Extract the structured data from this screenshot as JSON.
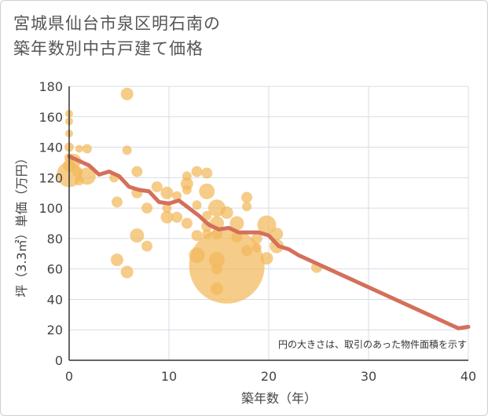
{
  "chart_data": {
    "type": "scatter",
    "title_line1": "宮城県仙台市泉区明石南の",
    "title_line2": "築年数別中古戸建て価格",
    "xlabel": "築年数（年）",
    "ylabel": "坪（3.3㎡）単価（万円）",
    "note": "円の大きさは、取引のあった物件面積を示す",
    "xlim": [
      0,
      40
    ],
    "ylim": [
      0,
      180
    ],
    "xticks": [
      0,
      10,
      20,
      30,
      40
    ],
    "yticks": [
      0,
      20,
      40,
      60,
      80,
      100,
      120,
      140,
      160,
      180
    ],
    "colors": {
      "bubble": "#f2b85c",
      "line": "#d4705a",
      "grid": "#d6dde6",
      "axis": "#333333"
    },
    "bubbles": [
      {
        "x": 0,
        "y": 162,
        "s": 5
      },
      {
        "x": 0,
        "y": 157,
        "s": 5
      },
      {
        "x": 0,
        "y": 149,
        "s": 5
      },
      {
        "x": 0,
        "y": 140,
        "s": 6
      },
      {
        "x": 0,
        "y": 133,
        "s": 6
      },
      {
        "x": 0,
        "y": 128,
        "s": 8
      },
      {
        "x": 0,
        "y": 122,
        "s": 16
      },
      {
        "x": 0.5,
        "y": 131,
        "s": 9
      },
      {
        "x": 0.8,
        "y": 124,
        "s": 7
      },
      {
        "x": 1,
        "y": 139,
        "s": 5
      },
      {
        "x": 1,
        "y": 118,
        "s": 6
      },
      {
        "x": 1.8,
        "y": 121,
        "s": 11
      },
      {
        "x": 1.8,
        "y": 139,
        "s": 6
      },
      {
        "x": 4.5,
        "y": 120,
        "s": 6
      },
      {
        "x": 4.8,
        "y": 104,
        "s": 7
      },
      {
        "x": 4.8,
        "y": 66,
        "s": 8
      },
      {
        "x": 5.8,
        "y": 175,
        "s": 8
      },
      {
        "x": 5.8,
        "y": 138,
        "s": 6
      },
      {
        "x": 5.8,
        "y": 58,
        "s": 8
      },
      {
        "x": 6.8,
        "y": 124,
        "s": 7
      },
      {
        "x": 6.8,
        "y": 110,
        "s": 7
      },
      {
        "x": 6.8,
        "y": 82,
        "s": 9
      },
      {
        "x": 7.8,
        "y": 100,
        "s": 7
      },
      {
        "x": 7.8,
        "y": 75,
        "s": 7
      },
      {
        "x": 8.8,
        "y": 114,
        "s": 7
      },
      {
        "x": 9.8,
        "y": 110,
        "s": 8
      },
      {
        "x": 9.8,
        "y": 100,
        "s": 6
      },
      {
        "x": 9.8,
        "y": 94,
        "s": 8
      },
      {
        "x": 10.8,
        "y": 108,
        "s": 6
      },
      {
        "x": 10.8,
        "y": 94,
        "s": 7
      },
      {
        "x": 11.8,
        "y": 121,
        "s": 6
      },
      {
        "x": 11.8,
        "y": 116,
        "s": 8
      },
      {
        "x": 11.8,
        "y": 112,
        "s": 6
      },
      {
        "x": 11.8,
        "y": 90,
        "s": 7
      },
      {
        "x": 12.8,
        "y": 124,
        "s": 7
      },
      {
        "x": 12.8,
        "y": 102,
        "s": 6
      },
      {
        "x": 12.8,
        "y": 82,
        "s": 7
      },
      {
        "x": 12.8,
        "y": 69,
        "s": 10
      },
      {
        "x": 13.8,
        "y": 123,
        "s": 7
      },
      {
        "x": 13.8,
        "y": 111,
        "s": 10
      },
      {
        "x": 13.8,
        "y": 95,
        "s": 6
      },
      {
        "x": 13.8,
        "y": 88,
        "s": 7
      },
      {
        "x": 13.8,
        "y": 83,
        "s": 6
      },
      {
        "x": 14.8,
        "y": 100,
        "s": 11
      },
      {
        "x": 14.8,
        "y": 90,
        "s": 9
      },
      {
        "x": 14.8,
        "y": 83,
        "s": 7
      },
      {
        "x": 14.8,
        "y": 66,
        "s": 10
      },
      {
        "x": 14.8,
        "y": 60,
        "s": 7
      },
      {
        "x": 14.8,
        "y": 47,
        "s": 8
      },
      {
        "x": 15.8,
        "y": 97,
        "s": 8
      },
      {
        "x": 15.8,
        "y": 62,
        "s": 48
      },
      {
        "x": 16.8,
        "y": 90,
        "s": 9
      },
      {
        "x": 16.8,
        "y": 81,
        "s": 7
      },
      {
        "x": 17.8,
        "y": 107,
        "s": 7
      },
      {
        "x": 17.8,
        "y": 101,
        "s": 6
      },
      {
        "x": 17.8,
        "y": 72,
        "s": 7
      },
      {
        "x": 18.8,
        "y": 80,
        "s": 7
      },
      {
        "x": 18.8,
        "y": 74,
        "s": 6
      },
      {
        "x": 19.8,
        "y": 89,
        "s": 12
      },
      {
        "x": 19.8,
        "y": 67,
        "s": 8
      },
      {
        "x": 20.8,
        "y": 83,
        "s": 8
      },
      {
        "x": 20.8,
        "y": 75,
        "s": 9
      },
      {
        "x": 24.8,
        "y": 61,
        "s": 7
      }
    ],
    "trend": {
      "x": [
        0,
        1,
        2,
        3,
        4,
        5,
        6,
        7,
        8,
        9,
        10,
        11,
        12,
        13,
        14,
        15,
        16,
        17,
        18,
        19,
        20,
        21,
        22,
        23,
        24,
        25,
        26,
        27,
        28,
        29,
        30,
        31,
        32,
        33,
        34,
        35,
        36,
        37,
        38,
        39,
        40
      ],
      "y": [
        134,
        131,
        128,
        122,
        124,
        121,
        114,
        112,
        111,
        104,
        103,
        105,
        100,
        95,
        89,
        86,
        87,
        84,
        84,
        84,
        82,
        75,
        73,
        69,
        66,
        63,
        60,
        57,
        54,
        51,
        48,
        45,
        42,
        39,
        36,
        33,
        30,
        27,
        24,
        21,
        22
      ]
    }
  }
}
